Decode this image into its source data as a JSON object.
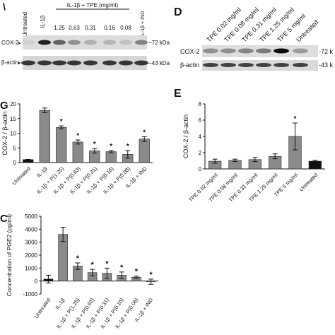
{
  "panel_letters": {
    "top_right": "D",
    "mid_left": "G",
    "mid_right": "E",
    "bottom_left": "C"
  },
  "blot_a": {
    "untreated": "Untreated",
    "il1b": "IL-1β",
    "group_label": "IL-1β + TPE (mg/ml)",
    "ind": "IL-1β + IND",
    "conc": [
      "1.25",
      "0.63",
      "0.31",
      "0.16",
      "0.08"
    ],
    "row1": "COX-2",
    "row2": "β-actin",
    "kda1": "−72 kDa",
    "kda2": "−43 kDa"
  },
  "blot_d": {
    "lanes": [
      "TPE 0.02 mg/ml",
      "TPE 0.08 mg/ml",
      "TPE 0.31 mg/ml",
      "TPE 1.25 mg/ml",
      "TPE 5 mg/ml",
      "Untreated"
    ],
    "row1": "COX-2",
    "row2": "β-actin",
    "kda1": "-72 k",
    "kda2": "-43 k"
  },
  "chart_data": [
    {
      "type": "bar",
      "ylabel": "COX-2 / β-actin",
      "ylim": [
        0,
        20
      ],
      "yticks": [
        0,
        5,
        10,
        15,
        20
      ],
      "categories": [
        "Untreated",
        "IL-1β",
        "IL-1β + P(1.25)",
        "IL-1β + P(0.63)",
        "IL-1β + P(0.31)",
        "IL-1β + P(0.16)",
        "IL-1β + P(0.08)",
        "IL-1β + IND"
      ],
      "values": [
        1.0,
        17.8,
        12.0,
        7.0,
        4.0,
        3.7,
        2.8,
        8.0
      ],
      "errors": [
        0.1,
        0.8,
        0.5,
        0.7,
        0.8,
        0.4,
        1.3,
        0.8
      ],
      "significance": [
        "",
        "",
        "*",
        "*",
        "*",
        "*",
        "*",
        "*"
      ],
      "colors": [
        "#111111",
        "#8a8a8a",
        "#8a8a8a",
        "#8a8a8a",
        "#8a8a8a",
        "#8a8a8a",
        "#8a8a8a",
        "#8a8a8a"
      ]
    },
    {
      "type": "bar",
      "ylabel": "COX-2 / β-actin",
      "ylim": [
        0,
        8
      ],
      "yticks": [
        0,
        2,
        4,
        6,
        8
      ],
      "categories": [
        "TPE 0.02 mg/ml",
        "TPE 0.08 mg/ml",
        "TPE 0.31 mg/ml",
        "TPE 1.25 mg/ml",
        "TPE 5 mg/ml",
        "Untreated"
      ],
      "values": [
        0.95,
        1.05,
        1.15,
        1.55,
        4.0,
        0.95
      ],
      "errors": [
        0.25,
        0.15,
        0.25,
        0.3,
        1.65,
        0.1
      ],
      "significance": [
        "",
        "",
        "",
        "",
        "*",
        ""
      ],
      "colors": [
        "#8a8a8a",
        "#8a8a8a",
        "#8a8a8a",
        "#8a8a8a",
        "#8a8a8a",
        "#111111"
      ]
    },
    {
      "type": "bar",
      "ylabel": "Concentration of PGE2 (pg/ml)",
      "ylim": [
        -1000,
        5000
      ],
      "yticks": [
        -1000,
        0,
        1000,
        2000,
        3000,
        4000,
        5000
      ],
      "categories": [
        "Untreated",
        "IL-1β",
        "IL-1β + P(1.25)",
        "IL-1β + P(0.63)",
        "IL-1β + P(0.31)",
        "IL-1β + P(0.16)",
        "IL-1β + P(0.08)",
        "IL-1β + IND"
      ],
      "values": [
        150,
        3600,
        1150,
        650,
        600,
        450,
        300,
        -50
      ],
      "errors": [
        300,
        550,
        250,
        250,
        400,
        250,
        80,
        200
      ],
      "significance": [
        "",
        "",
        "*",
        "*",
        "*",
        "*",
        "*",
        "*"
      ],
      "colors": [
        "#111111",
        "#8a8a8a",
        "#8a8a8a",
        "#8a8a8a",
        "#8a8a8a",
        "#8a8a8a",
        "#8a8a8a",
        "#8a8a8a"
      ]
    }
  ]
}
